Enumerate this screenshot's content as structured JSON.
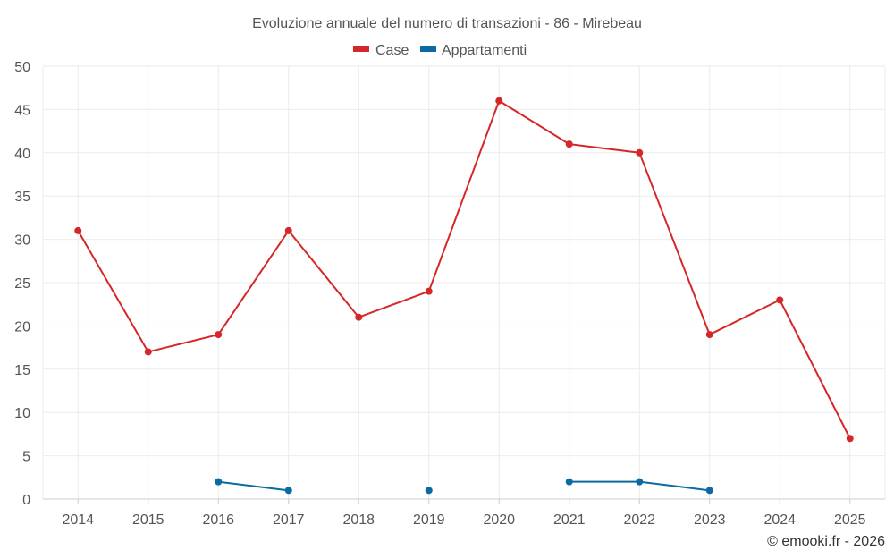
{
  "chart_data": {
    "type": "line",
    "title": "Evoluzione annuale del numero di transazioni - 86 - Mirebeau",
    "categories": [
      "2014",
      "2015",
      "2016",
      "2017",
      "2018",
      "2019",
      "2020",
      "2021",
      "2022",
      "2023",
      "2024",
      "2025"
    ],
    "yticks": [
      "0",
      "5",
      "10",
      "15",
      "20",
      "25",
      "30",
      "35",
      "40",
      "45",
      "50"
    ],
    "ylim": [
      0,
      50
    ],
    "grid": true,
    "legend_position": "top-center",
    "series": [
      {
        "name": "Case",
        "color": "#d62728",
        "values": [
          31,
          17,
          19,
          31,
          21,
          24,
          46,
          41,
          40,
          19,
          23,
          7
        ]
      },
      {
        "name": "Appartamenti",
        "color": "#0a6aa1",
        "values": [
          null,
          null,
          2,
          1,
          null,
          1,
          null,
          2,
          2,
          1,
          null,
          null
        ]
      }
    ]
  },
  "credit": "© emooki.fr - 2026"
}
